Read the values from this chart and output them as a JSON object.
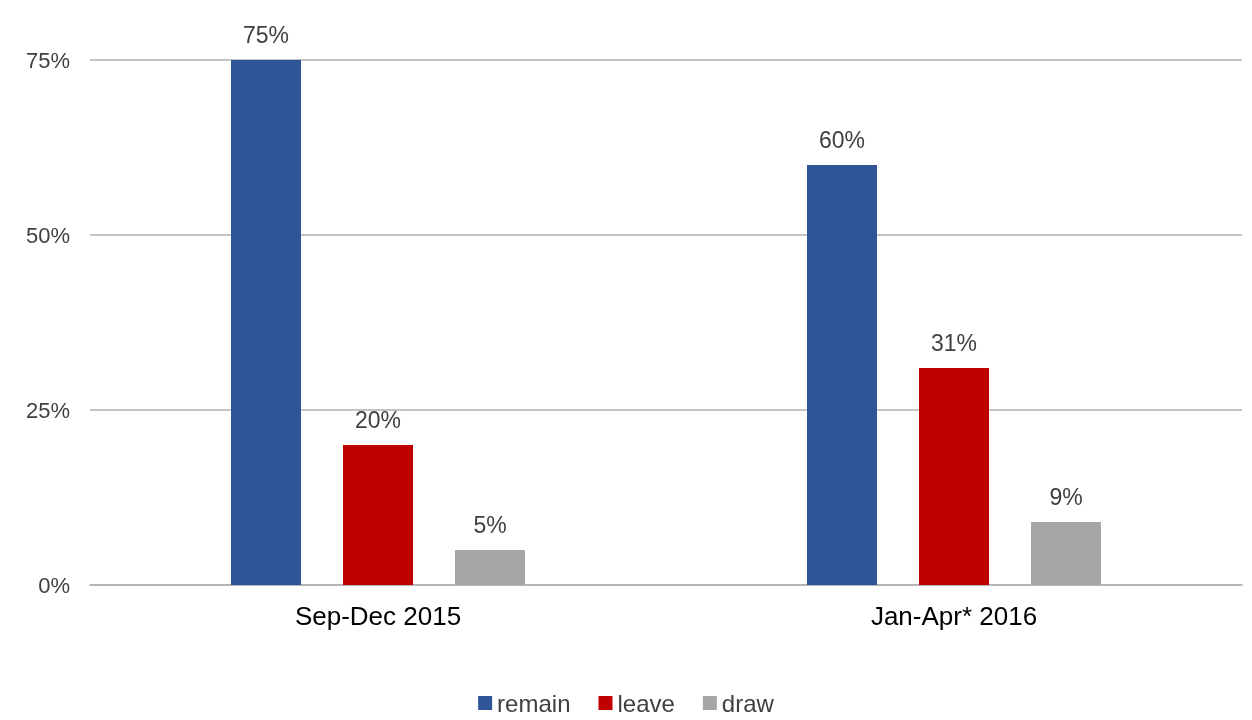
{
  "chart_data": {
    "type": "bar",
    "categories": [
      "Sep-Dec 2015",
      "Jan-Apr* 2016"
    ],
    "series": [
      {
        "name": "remain",
        "color": "#2f5597",
        "values": [
          75,
          60
        ],
        "value_labels": [
          "75%",
          "60%"
        ]
      },
      {
        "name": "leave",
        "color": "#c00000",
        "values": [
          20,
          31
        ],
        "value_labels": [
          "20%",
          "31%"
        ]
      },
      {
        "name": "draw",
        "color": "#a6a6a6",
        "values": [
          5,
          9
        ],
        "value_labels": [
          "5%",
          "9%"
        ]
      }
    ],
    "ylim": [
      0,
      75
    ],
    "yticks": [
      {
        "value": 0,
        "label": "0%"
      },
      {
        "value": 25,
        "label": "25%"
      },
      {
        "value": 50,
        "label": "50%"
      },
      {
        "value": 75,
        "label": "75%"
      }
    ],
    "grid": "y",
    "legend": "bottom"
  }
}
